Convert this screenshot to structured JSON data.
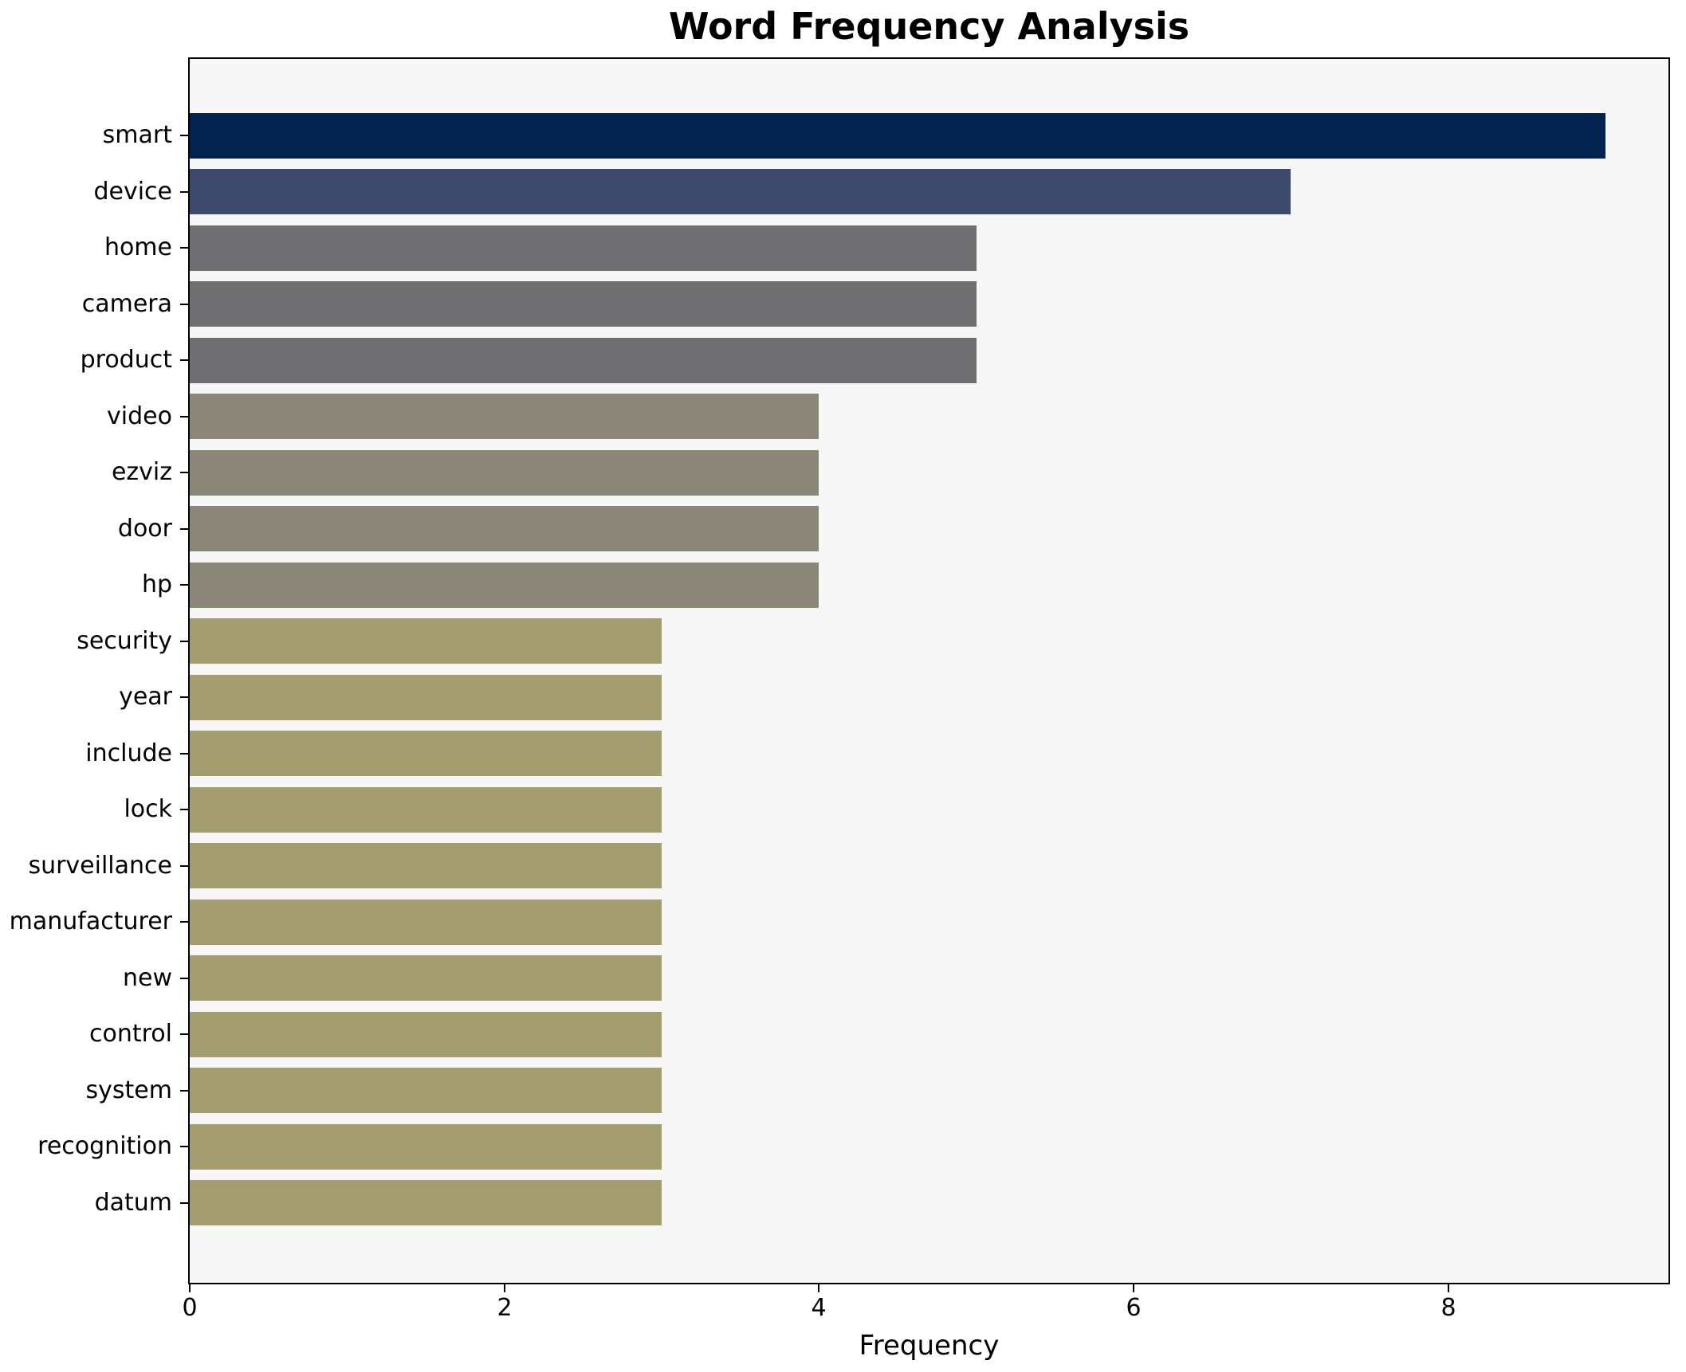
{
  "chart_data": {
    "type": "bar",
    "orientation": "horizontal",
    "title": "Word Frequency Analysis",
    "xlabel": "Frequency",
    "ylabel": "",
    "categories": [
      "smart",
      "device",
      "home",
      "camera",
      "product",
      "video",
      "ezviz",
      "door",
      "hp",
      "security",
      "year",
      "include",
      "lock",
      "surveillance",
      "manufacturer",
      "new",
      "control",
      "system",
      "recognition",
      "datum"
    ],
    "values": [
      9,
      7,
      5,
      5,
      5,
      4,
      4,
      4,
      4,
      3,
      3,
      3,
      3,
      3,
      3,
      3,
      3,
      3,
      3,
      3
    ],
    "bar_colors": [
      "#02234e",
      "#3d4a6c",
      "#6f6f71",
      "#6f6f71",
      "#6f6f71",
      "#8a8678",
      "#8a8678",
      "#8a8678",
      "#8a8678",
      "#a49d70",
      "#a49d70",
      "#a49d70",
      "#a49d70",
      "#a49d70",
      "#a49d70",
      "#a49d70",
      "#a49d70",
      "#a49d70",
      "#a49d70",
      "#a49d70"
    ],
    "xticks": [
      0,
      2,
      4,
      6,
      8
    ],
    "xlim": [
      0,
      9.4
    ],
    "grid": false,
    "legend": false,
    "plot_background": "#f7f7f7",
    "figure_background": "#ffffff",
    "spine_color": "#000000",
    "text_color": "#000000"
  }
}
